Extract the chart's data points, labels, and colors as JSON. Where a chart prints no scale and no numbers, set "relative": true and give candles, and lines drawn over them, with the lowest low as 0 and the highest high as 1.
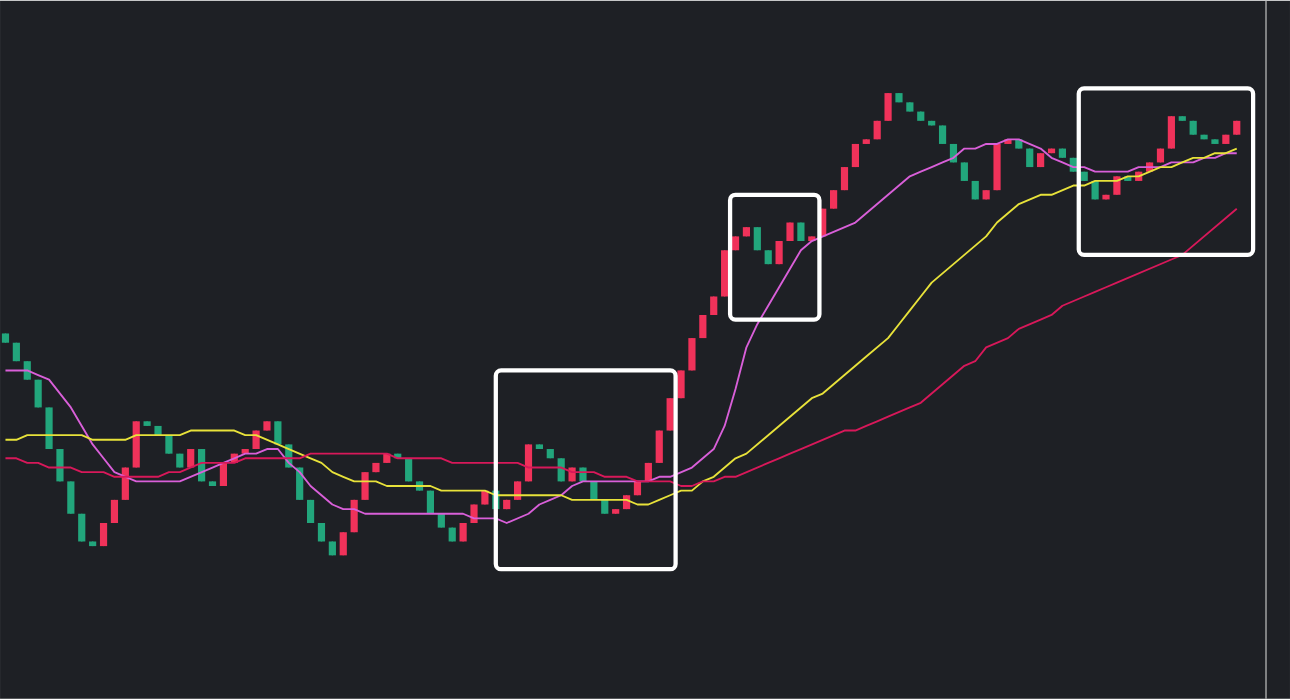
{
  "chart_data": {
    "type": "candlestick",
    "relative": true,
    "marker": "none",
    "line_style": "solid",
    "categories": [
      null,
      null,
      null,
      null,
      null,
      null,
      null,
      null,
      null,
      null,
      null,
      null,
      null,
      null,
      null,
      null,
      null,
      null,
      null,
      null,
      null,
      null,
      null,
      null,
      null,
      null,
      null,
      null,
      null,
      null,
      null,
      null,
      null,
      null,
      null,
      null,
      null,
      null,
      null,
      null,
      null,
      null,
      null,
      null,
      null,
      null,
      null,
      null,
      null,
      null,
      null,
      null,
      null,
      null,
      null,
      null,
      null,
      null,
      null,
      null,
      null,
      null,
      null,
      null,
      null,
      null,
      null,
      null,
      null,
      null,
      null,
      null,
      null,
      null,
      null,
      null,
      null,
      null,
      null,
      null,
      null,
      null,
      null,
      null,
      null,
      null,
      null,
      null,
      null,
      null,
      null,
      null,
      null,
      null,
      null,
      null,
      null,
      null,
      null,
      null,
      null,
      null,
      null,
      null,
      null,
      null,
      null,
      null,
      null,
      null,
      null,
      null,
      null,
      null
    ],
    "ohlc": [
      [
        0.48,
        0.48,
        0.46,
        0.46
      ],
      [
        0.46,
        0.46,
        0.42,
        0.42
      ],
      [
        0.42,
        0.42,
        0.38,
        0.38
      ],
      [
        0.38,
        0.38,
        0.32,
        0.32
      ],
      [
        0.32,
        0.32,
        0.23,
        0.23
      ],
      [
        0.23,
        0.23,
        0.16,
        0.16
      ],
      [
        0.16,
        0.16,
        0.09,
        0.09
      ],
      [
        0.09,
        0.09,
        0.03,
        0.03
      ],
      [
        0.03,
        0.03,
        0.02,
        0.02
      ],
      [
        0.02,
        0.07,
        0.02,
        0.07
      ],
      [
        0.07,
        0.12,
        0.07,
        0.12
      ],
      [
        0.12,
        0.19,
        0.12,
        0.19
      ],
      [
        0.19,
        0.29,
        0.19,
        0.29
      ],
      [
        0.29,
        0.29,
        0.28,
        0.28
      ],
      [
        0.28,
        0.28,
        0.26,
        0.26
      ],
      [
        0.26,
        0.26,
        0.22,
        0.22
      ],
      [
        0.22,
        0.22,
        0.19,
        0.19
      ],
      [
        0.19,
        0.23,
        0.19,
        0.23
      ],
      [
        0.23,
        0.23,
        0.16,
        0.16
      ],
      [
        0.16,
        0.16,
        0.15,
        0.15
      ],
      [
        0.15,
        0.2,
        0.15,
        0.2
      ],
      [
        0.2,
        0.22,
        0.2,
        0.22
      ],
      [
        0.22,
        0.23,
        0.22,
        0.23
      ],
      [
        0.23,
        0.27,
        0.23,
        0.27
      ],
      [
        0.27,
        0.29,
        0.27,
        0.29
      ],
      [
        0.29,
        0.29,
        0.24,
        0.24
      ],
      [
        0.24,
        0.24,
        0.19,
        0.19
      ],
      [
        0.19,
        0.19,
        0.12,
        0.12
      ],
      [
        0.12,
        0.12,
        0.07,
        0.07
      ],
      [
        0.07,
        0.07,
        0.03,
        0.03
      ],
      [
        0.03,
        0.03,
        0,
        0
      ],
      [
        0,
        0.05,
        0,
        0.05
      ],
      [
        0.05,
        0.12,
        0.05,
        0.12
      ],
      [
        0.12,
        0.18,
        0.12,
        0.18
      ],
      [
        0.18,
        0.2,
        0.18,
        0.2
      ],
      [
        0.2,
        0.22,
        0.2,
        0.22
      ],
      [
        0.22,
        0.22,
        0.21,
        0.21
      ],
      [
        0.21,
        0.21,
        0.16,
        0.16
      ],
      [
        0.16,
        0.16,
        0.14,
        0.14
      ],
      [
        0.14,
        0.14,
        0.09,
        0.09
      ],
      [
        0.09,
        0.09,
        0.06,
        0.06
      ],
      [
        0.06,
        0.06,
        0.03,
        0.03
      ],
      [
        0.03,
        0.07,
        0.03,
        0.07
      ],
      [
        0.07,
        0.11,
        0.07,
        0.11
      ],
      [
        0.11,
        0.14,
        0.11,
        0.14
      ],
      [
        0.14,
        0.14,
        0.1,
        0.1
      ],
      [
        0.1,
        0.12,
        0.1,
        0.12
      ],
      [
        0.12,
        0.16,
        0.12,
        0.16
      ],
      [
        0.16,
        0.24,
        0.16,
        0.24
      ],
      [
        0.24,
        0.24,
        0.23,
        0.23
      ],
      [
        0.23,
        0.23,
        0.21,
        0.21
      ],
      [
        0.21,
        0.21,
        0.16,
        0.16
      ],
      [
        0.16,
        0.19,
        0.16,
        0.19
      ],
      [
        0.19,
        0.19,
        0.16,
        0.16
      ],
      [
        0.16,
        0.16,
        0.12,
        0.12
      ],
      [
        0.12,
        0.12,
        0.09,
        0.09
      ],
      [
        0.09,
        0.1,
        0.09,
        0.1
      ],
      [
        0.1,
        0.13,
        0.1,
        0.13
      ],
      [
        0.13,
        0.16,
        0.13,
        0.16
      ],
      [
        0.16,
        0.2,
        0.16,
        0.2
      ],
      [
        0.2,
        0.27,
        0.2,
        0.27
      ],
      [
        0.27,
        0.34,
        0.27,
        0.34
      ],
      [
        0.34,
        0.4,
        0.34,
        0.4
      ],
      [
        0.4,
        0.47,
        0.4,
        0.47
      ],
      [
        0.47,
        0.52,
        0.47,
        0.52
      ],
      [
        0.52,
        0.56,
        0.52,
        0.56
      ],
      [
        0.56,
        0.66,
        0.56,
        0.66
      ],
      [
        0.66,
        0.69,
        0.66,
        0.69
      ],
      [
        0.69,
        0.71,
        0.69,
        0.71
      ],
      [
        0.71,
        0.71,
        0.66,
        0.66
      ],
      [
        0.66,
        0.66,
        0.63,
        0.63
      ],
      [
        0.63,
        0.68,
        0.63,
        0.68
      ],
      [
        0.68,
        0.72,
        0.68,
        0.72
      ],
      [
        0.72,
        0.72,
        0.68,
        0.68
      ],
      [
        0.68,
        0.69,
        0.68,
        0.69
      ],
      [
        0.69,
        0.75,
        0.69,
        0.75
      ],
      [
        0.75,
        0.79,
        0.75,
        0.79
      ],
      [
        0.79,
        0.84,
        0.79,
        0.84
      ],
      [
        0.84,
        0.89,
        0.84,
        0.89
      ],
      [
        0.89,
        0.9,
        0.89,
        0.9
      ],
      [
        0.9,
        0.94,
        0.9,
        0.94
      ],
      [
        0.94,
        1,
        0.94,
        1
      ],
      [
        1,
        1,
        0.98,
        0.98
      ],
      [
        0.98,
        0.98,
        0.96,
        0.96
      ],
      [
        0.96,
        0.96,
        0.94,
        0.94
      ],
      [
        0.94,
        0.94,
        0.93,
        0.93
      ],
      [
        0.93,
        0.93,
        0.89,
        0.89
      ],
      [
        0.89,
        0.89,
        0.85,
        0.85
      ],
      [
        0.85,
        0.85,
        0.81,
        0.81
      ],
      [
        0.81,
        0.81,
        0.77,
        0.77
      ],
      [
        0.77,
        0.79,
        0.77,
        0.79
      ],
      [
        0.79,
        0.89,
        0.79,
        0.89
      ],
      [
        0.89,
        0.9,
        0.89,
        0.9
      ],
      [
        0.9,
        0.9,
        0.88,
        0.88
      ],
      [
        0.88,
        0.88,
        0.84,
        0.84
      ],
      [
        0.84,
        0.87,
        0.84,
        0.87
      ],
      [
        0.87,
        0.88,
        0.87,
        0.88
      ],
      [
        0.88,
        0.88,
        0.86,
        0.86
      ],
      [
        0.86,
        0.86,
        0.83,
        0.83
      ],
      [
        0.83,
        0.83,
        0.81,
        0.81
      ],
      [
        0.81,
        0.81,
        0.77,
        0.77
      ],
      [
        0.77,
        0.78,
        0.77,
        0.78
      ],
      [
        0.78,
        0.82,
        0.78,
        0.82
      ],
      [
        0.82,
        0.82,
        0.81,
        0.81
      ],
      [
        0.81,
        0.83,
        0.81,
        0.83
      ],
      [
        0.83,
        0.85,
        0.83,
        0.85
      ],
      [
        0.85,
        0.88,
        0.85,
        0.88
      ],
      [
        0.88,
        0.95,
        0.88,
        0.95
      ],
      [
        0.95,
        0.95,
        0.94,
        0.94
      ],
      [
        0.94,
        0.94,
        0.91,
        0.91
      ],
      [
        0.91,
        0.91,
        0.9,
        0.9
      ],
      [
        0.9,
        0.9,
        0.89,
        0.89
      ],
      [
        0.89,
        0.91,
        0.89,
        0.91
      ],
      [
        0.91,
        0.94,
        0.91,
        0.94
      ]
    ],
    "colors": [
      "#22a67c",
      "#22a67c",
      "#22a67c",
      "#22a67c",
      "#22a67c",
      "#22a67c",
      "#22a67c",
      "#22a67c",
      "#22a67c",
      "#f0325a",
      "#f0325a",
      "#f0325a",
      "#f0325a",
      "#22a67c",
      "#22a67c",
      "#22a67c",
      "#22a67c",
      "#f0325a",
      "#22a67c",
      "#22a67c",
      "#f0325a",
      "#f0325a",
      "#f0325a",
      "#f0325a",
      "#f0325a",
      "#22a67c",
      "#22a67c",
      "#22a67c",
      "#22a67c",
      "#22a67c",
      "#22a67c",
      "#f0325a",
      "#f0325a",
      "#f0325a",
      "#f0325a",
      "#f0325a",
      "#22a67c",
      "#22a67c",
      "#22a67c",
      "#22a67c",
      "#22a67c",
      "#22a67c",
      "#f0325a",
      "#f0325a",
      "#f0325a",
      "#22a67c",
      "#f0325a",
      "#f0325a",
      "#f0325a",
      "#22a67c",
      "#22a67c",
      "#22a67c",
      "#f0325a",
      "#22a67c",
      "#22a67c",
      "#22a67c",
      "#f0325a",
      "#f0325a",
      "#f0325a",
      "#f0325a",
      "#f0325a",
      "#f0325a",
      "#f0325a",
      "#f0325a",
      "#f0325a",
      "#f0325a",
      "#f0325a",
      "#f0325a",
      "#f0325a",
      "#22a67c",
      "#22a67c",
      "#f0325a",
      "#f0325a",
      "#22a67c",
      "#f0325a",
      "#f0325a",
      "#f0325a",
      "#f0325a",
      "#f0325a",
      "#f0325a",
      "#f0325a",
      "#f0325a",
      "#22a67c",
      "#22a67c",
      "#22a67c",
      "#22a67c",
      "#22a67c",
      "#22a67c",
      "#22a67c",
      "#22a67c",
      "#f0325a",
      "#f0325a",
      "#f0325a",
      "#22a67c",
      "#22a67c",
      "#f0325a",
      "#f0325a",
      "#22a67c",
      "#22a67c",
      "#22a67c",
      "#22a67c",
      "#f0325a",
      "#f0325a",
      "#22a67c",
      "#f0325a",
      "#f0325a",
      "#f0325a",
      "#f0325a",
      "#22a67c",
      "#22a67c",
      "#22a67c",
      "#22a67c",
      "#f0325a",
      "#f0325a"
    ],
    "series": [
      {
        "type": "line",
        "color": "#d95fd9",
        "values": [
          0.4,
          0.4,
          0.4,
          0.39,
          0.38,
          0.35,
          0.32,
          0.28,
          0.24,
          0.21,
          0.18,
          0.17,
          0.16,
          0.16,
          0.16,
          0.16,
          0.16,
          0.17,
          0.18,
          0.19,
          0.2,
          0.21,
          0.22,
          0.22,
          0.23,
          0.23,
          0.2,
          0.18,
          0.15,
          0.13,
          0.11,
          0.1,
          0.1,
          0.09,
          0.09,
          0.09,
          0.09,
          0.09,
          0.09,
          0.09,
          0.09,
          0.09,
          0.09,
          0.08,
          0.08,
          0.08,
          0.07,
          0.08,
          0.09,
          0.11,
          0.12,
          0.13,
          0.15,
          0.16,
          0.16,
          0.16,
          0.16,
          0.16,
          0.16,
          0.16,
          0.17,
          0.17,
          0.18,
          0.19,
          0.21,
          0.23,
          0.28,
          0.36,
          0.45,
          0.5,
          0.54,
          0.58,
          0.62,
          0.66,
          0.68,
          0.69,
          0.7,
          0.71,
          0.72,
          0.74,
          0.76,
          0.78,
          0.8,
          0.82,
          0.83,
          0.84,
          0.85,
          0.86,
          0.88,
          0.88,
          0.89,
          0.89,
          0.9,
          0.9,
          0.89,
          0.88,
          0.86,
          0.85,
          0.84,
          0.84,
          0.83,
          0.83,
          0.83,
          0.83,
          0.84,
          0.84,
          0.84,
          0.85,
          0.85,
          0.85,
          0.86,
          0.86,
          0.87,
          0.87
        ]
      },
      {
        "type": "line",
        "color": "#e8e23a",
        "values": [
          0.25,
          0.25,
          0.26,
          0.26,
          0.26,
          0.26,
          0.26,
          0.26,
          0.25,
          0.25,
          0.25,
          0.25,
          0.26,
          0.26,
          0.26,
          0.26,
          0.26,
          0.27,
          0.27,
          0.27,
          0.27,
          0.27,
          0.26,
          0.26,
          0.25,
          0.24,
          0.23,
          0.22,
          0.21,
          0.2,
          0.18,
          0.17,
          0.16,
          0.16,
          0.16,
          0.15,
          0.15,
          0.15,
          0.15,
          0.15,
          0.14,
          0.14,
          0.14,
          0.14,
          0.14,
          0.13,
          0.13,
          0.13,
          0.13,
          0.13,
          0.13,
          0.13,
          0.12,
          0.12,
          0.12,
          0.12,
          0.12,
          0.12,
          0.11,
          0.11,
          0.12,
          0.13,
          0.14,
          0.14,
          0.16,
          0.17,
          0.19,
          0.21,
          0.22,
          0.24,
          0.26,
          0.28,
          0.3,
          0.32,
          0.34,
          0.35,
          0.37,
          0.39,
          0.41,
          0.43,
          0.45,
          0.47,
          0.5,
          0.53,
          0.56,
          0.59,
          0.61,
          0.63,
          0.65,
          0.67,
          0.69,
          0.72,
          0.74,
          0.76,
          0.77,
          0.78,
          0.78,
          0.79,
          0.8,
          0.8,
          0.81,
          0.81,
          0.81,
          0.82,
          0.82,
          0.83,
          0.84,
          0.84,
          0.85,
          0.86,
          0.86,
          0.87,
          0.87,
          0.88
        ]
      },
      {
        "type": "line",
        "color": "#d8185a",
        "values": [
          0.21,
          0.21,
          0.2,
          0.2,
          0.19,
          0.19,
          0.19,
          0.18,
          0.18,
          0.18,
          0.17,
          0.17,
          0.17,
          0.17,
          0.17,
          0.18,
          0.18,
          0.19,
          0.2,
          0.2,
          0.2,
          0.2,
          0.21,
          0.21,
          0.21,
          0.21,
          0.21,
          0.21,
          0.22,
          0.22,
          0.22,
          0.22,
          0.22,
          0.22,
          0.22,
          0.22,
          0.21,
          0.21,
          0.21,
          0.21,
          0.21,
          0.2,
          0.2,
          0.2,
          0.2,
          0.2,
          0.2,
          0.2,
          0.19,
          0.19,
          0.19,
          0.19,
          0.18,
          0.18,
          0.18,
          0.17,
          0.17,
          0.17,
          0.16,
          0.16,
          0.16,
          0.16,
          0.15,
          0.15,
          0.16,
          0.16,
          0.17,
          0.17,
          0.18,
          0.19,
          0.2,
          0.21,
          0.22,
          0.23,
          0.24,
          0.25,
          0.26,
          0.27,
          0.27,
          0.28,
          0.29,
          0.3,
          0.31,
          0.32,
          0.33,
          0.35,
          0.37,
          0.39,
          0.41,
          0.42,
          0.45,
          0.46,
          0.47,
          0.49,
          0.5,
          0.51,
          0.52,
          0.54,
          0.55,
          0.56,
          0.57,
          0.58,
          0.59,
          0.6,
          0.61,
          0.62,
          0.63,
          0.64,
          0.65,
          0.67,
          0.69,
          0.71,
          0.73,
          0.75
        ]
      }
    ]
  }
}
